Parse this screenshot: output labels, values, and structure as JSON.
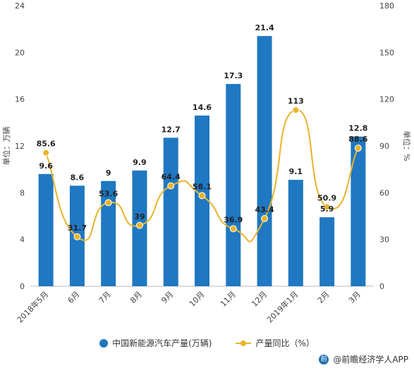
{
  "chart_data": {
    "type": "bar",
    "categories": [
      "2018年5月",
      "6月",
      "7月",
      "8月",
      "9月",
      "10月",
      "11月",
      "12月",
      "2019年1月",
      "2月",
      "3月"
    ],
    "series": [
      {
        "name": "中国新能源汽车产量(万辆)",
        "type": "bar",
        "axis": "left",
        "values": [
          9.6,
          8.6,
          9,
          9.9,
          12.7,
          14.6,
          17.3,
          21.4,
          9.1,
          5.9,
          12.8
        ],
        "color": "#1f78c1"
      },
      {
        "name": "产量同比（%）",
        "type": "line",
        "axis": "right",
        "values": [
          85.6,
          31.7,
          53.6,
          39,
          64.4,
          58.1,
          36.9,
          43.4,
          113,
          50.9,
          88.6
        ],
        "color": "#e9b42c"
      }
    ],
    "ylabel": "单位：万辆",
    "y2label": "单位：%",
    "ylim": [
      0,
      24
    ],
    "y2lim": [
      0,
      180
    ],
    "yticks": [
      0,
      4,
      8,
      12,
      16,
      20,
      24
    ],
    "y2ticks": [
      0,
      30,
      60,
      90,
      120,
      150,
      180
    ],
    "grid": false,
    "legend_position": "bottom"
  },
  "source": {
    "text": "@前瞻经济学人APP",
    "icon": "qianzhan-logo-icon"
  }
}
